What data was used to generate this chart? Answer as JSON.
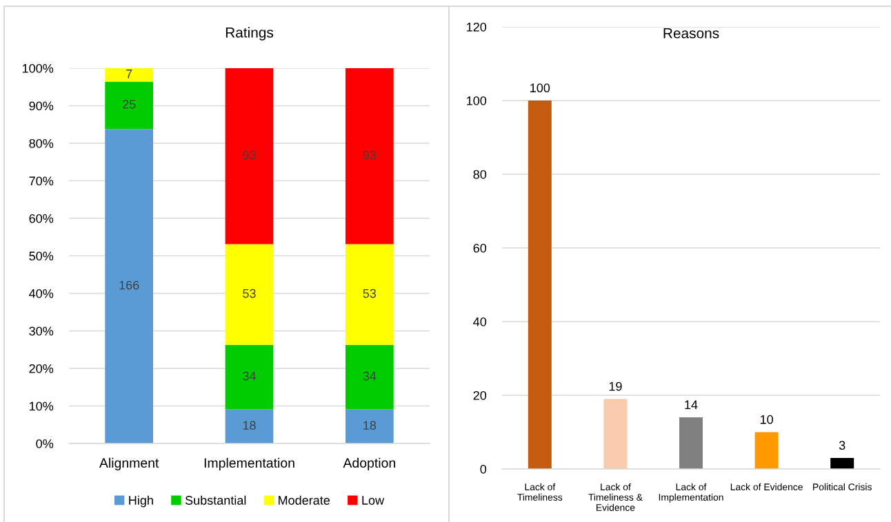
{
  "chart_data": [
    {
      "type": "bar",
      "title": "Ratings",
      "categories": [
        "Alignment",
        "Implementation",
        "Adoption"
      ],
      "stacked": true,
      "series": [
        {
          "name": "High",
          "color": "#5b9bd5",
          "values": [
            83.8,
            9.1,
            9.1
          ]
        },
        {
          "name": "Substantial",
          "color": "#00cc00",
          "values": [
            12.6,
            17.2,
            17.2
          ]
        },
        {
          "name": "Moderate",
          "color": "#ffff00",
          "values": [
            3.6,
            26.8,
            26.8
          ]
        },
        {
          "name": "Low",
          "color": "#ff0000",
          "values": [
            null,
            46.9,
            46.9
          ]
        }
      ],
      "annotations": [
        "166",
        "25",
        "7",
        "18",
        "34",
        "53",
        "93",
        "18",
        "34",
        "53",
        "93"
      ],
      "ylim": [
        0,
        100
      ],
      "yticks": [
        {
          "value": 0,
          "label": "0%"
        },
        {
          "value": 10,
          "label": "10%"
        },
        {
          "value": 20,
          "label": "20%"
        },
        {
          "value": 30,
          "label": "30%"
        },
        {
          "value": 40,
          "label": "40%"
        },
        {
          "value": 50,
          "label": "50%"
        },
        {
          "value": 60,
          "label": "60%"
        },
        {
          "value": 70,
          "label": "70%"
        },
        {
          "value": 80,
          "label": "80%"
        },
        {
          "value": 90,
          "label": "90%"
        },
        {
          "value": 100,
          "label": "100%"
        }
      ],
      "grid": "y",
      "legend": "bottom"
    },
    {
      "type": "bar",
      "title": "Reasons",
      "categories": [
        "Lack of\nTimeliness",
        "Lack of\nTimeliness &\nEvidence",
        "Lack of\nImplementation",
        "Lack of Evidence",
        "Political Crisis"
      ],
      "values": [
        100,
        19,
        14,
        10,
        3
      ],
      "colors": [
        "#c55a11",
        "#f8cbad",
        "#808080",
        "#ff9900",
        "#000000"
      ],
      "ylim": [
        0,
        120
      ],
      "yticks": [
        0,
        20,
        40,
        60,
        80,
        100,
        120
      ],
      "grid": "y",
      "data_labels": true
    }
  ]
}
